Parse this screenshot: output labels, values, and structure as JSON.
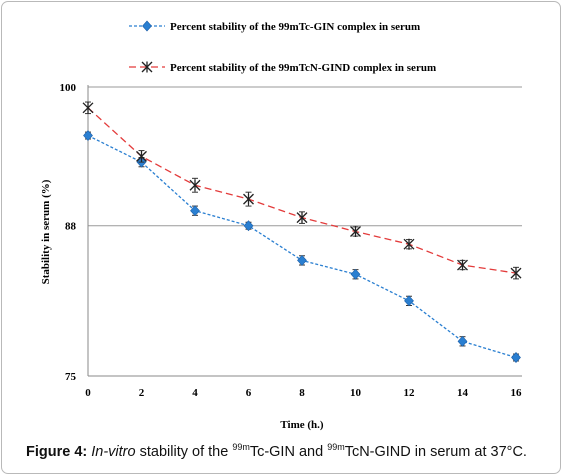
{
  "chart_data": {
    "type": "line",
    "x": [
      0,
      2,
      4,
      6,
      8,
      10,
      12,
      14,
      16
    ],
    "xlabel": "Time (h.)",
    "ylabel": "Stability in serum   (%)",
    "ylim": [
      75,
      100
    ],
    "yticks": [
      75,
      88,
      100
    ],
    "xticks": [
      "0",
      "2",
      "4",
      "6",
      "8",
      "10",
      "12",
      "14",
      "16"
    ],
    "grid": "horizontal",
    "legend_position": "top",
    "series": [
      {
        "name": "Percent stability of the 99mTc-GIN complex in serum",
        "values": [
          95.8,
          93.5,
          89.3,
          88.0,
          85.0,
          83.8,
          81.5,
          78.0,
          76.6
        ],
        "errors": [
          0.3,
          0.4,
          0.4,
          0.3,
          0.4,
          0.4,
          0.4,
          0.4,
          0.3
        ],
        "color": "#2a7fd1",
        "marker": "diamond",
        "line": "dotted"
      },
      {
        "name": "Percent stability of the 99mTcN-GIND complex in serum",
        "values": [
          98.2,
          94.0,
          91.5,
          90.3,
          88.7,
          87.5,
          86.4,
          84.6,
          83.9
        ],
        "errors": [
          0.5,
          0.5,
          0.6,
          0.6,
          0.5,
          0.4,
          0.4,
          0.4,
          0.5
        ],
        "color": "#e33b3b",
        "marker": "asterisk",
        "line": "dashed"
      }
    ]
  },
  "caption": {
    "label": "Figure 4:",
    "italic": "In-vitro",
    "t1": " stability of the ",
    "sup1": "99m",
    "t2": "Tc-GIN and ",
    "sup2": "99m",
    "t3": "TcN-GIND in serum at 37°C."
  }
}
